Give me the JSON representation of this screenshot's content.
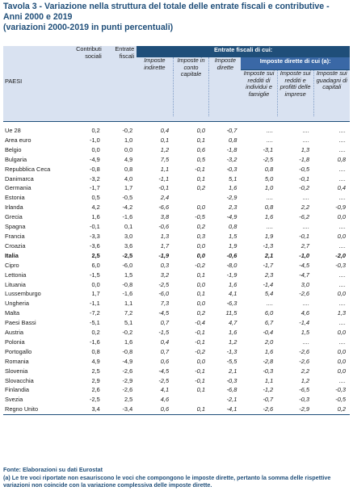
{
  "title": {
    "main": "Tavola 3 - Variazione nella struttura del totale delle entrate fiscali e contributive - Anni 2000 e 2019",
    "sub": "(variazioni 2000-2019 in punti percentuali)"
  },
  "header": {
    "paesi": "PAESI",
    "contributi": "Contributi sociali",
    "entrate_fiscali": "Entrate fiscali",
    "entrate_di_cui": "Entrate fiscali di cui:",
    "imposte_indirette": "Imposte indirette",
    "imposte_conto_capitale": "Imposte in conto capitale",
    "imposte_dirette": "Imposte dirette",
    "imposte_dirette_di_cui": "Imposte dirette di cui (a):",
    "redditi_individui": "Imposte sui redditi di individui e famiglie",
    "redditi_imprese": "Imposte sui redditi e profitti delle imprese",
    "guadagni_capitale": "Imposte sui guadagni di capitali"
  },
  "rows": [
    {
      "paese": "Ue 28",
      "v": [
        "0,2",
        "-0,2",
        "0,4",
        "0,0",
        "-0,7",
        "....",
        "....",
        "...."
      ]
    },
    {
      "paese": "Area euro",
      "v": [
        "-1,0",
        "1,0",
        "0,1",
        "0,1",
        "0,8",
        "....",
        "....",
        "...."
      ]
    },
    {
      "paese": "Belgio",
      "v": [
        "0,0",
        "0,0",
        "1,2",
        "0,6",
        "-1,8",
        "-3,1",
        "1,3",
        "...."
      ]
    },
    {
      "paese": "Bulgaria",
      "v": [
        "-4,9",
        "4,9",
        "7,5",
        "0,5",
        "-3,2",
        "-2,5",
        "-1,8",
        "0,8"
      ]
    },
    {
      "paese": "Repubblica Ceca",
      "v": [
        "-0,8",
        "0,8",
        "1,1",
        "-0,1",
        "-0,3",
        "0,8",
        "-0,5",
        "...."
      ]
    },
    {
      "paese": "Danimarca",
      "v": [
        "-3,2",
        "4,0",
        "-1,1",
        "0,1",
        "5,1",
        "5,0",
        "-0,1",
        "...."
      ]
    },
    {
      "paese": "Germania",
      "v": [
        "-1,7",
        "1,7",
        "-0,1",
        "0,2",
        "1,6",
        "1,0",
        "-0,2",
        "0,4"
      ]
    },
    {
      "paese": "Estonia",
      "v": [
        "0,5",
        "-0,5",
        "2,4",
        "",
        "-2,9",
        "....",
        "....",
        "...."
      ]
    },
    {
      "paese": "Irlanda",
      "v": [
        "4,2",
        "-4,2",
        "-6,6",
        "0,0",
        "2,3",
        "0,8",
        "2,2",
        "-0,9"
      ]
    },
    {
      "paese": "Grecia",
      "v": [
        "1,6",
        "-1,6",
        "3,8",
        "-0,5",
        "-4,9",
        "1,6",
        "-6,2",
        "0,0"
      ]
    },
    {
      "paese": "Spagna",
      "v": [
        "-0,1",
        "0,1",
        "-0,6",
        "0,2",
        "0,8",
        "....",
        "....",
        "...."
      ]
    },
    {
      "paese": "Francia",
      "v": [
        "-3,3",
        "3,0",
        "1,3",
        "0,3",
        "1,5",
        "1,9",
        "-0,1",
        "0,0"
      ]
    },
    {
      "paese": "Croazia",
      "v": [
        "-3,6",
        "3,6",
        "1,7",
        "0,0",
        "1,9",
        "-1,3",
        "2,7",
        "...."
      ]
    },
    {
      "paese": "Italia",
      "v": [
        "2,5",
        "-2,5",
        "-1,9",
        "0,0",
        "-0,6",
        "2,1",
        "-1,0",
        "-2,0"
      ],
      "bold": true
    },
    {
      "paese": "Cipro",
      "v": [
        "6,0",
        "-6,0",
        "0,3",
        "-0,2",
        "-8,0",
        "-1,7",
        "-4,5",
        "-0,3"
      ]
    },
    {
      "paese": "Lettonia",
      "v": [
        "-1,5",
        "1,5",
        "3,2",
        "0,1",
        "-1,9",
        "2,3",
        "-4,7",
        "...."
      ]
    },
    {
      "paese": "Lituania",
      "v": [
        "0,0",
        "-0,8",
        "-2,5",
        "0,0",
        "1,6",
        "-1,4",
        "3,0",
        "...."
      ]
    },
    {
      "paese": "Lussemburgo",
      "v": [
        "1,7",
        "-1,6",
        "-6,0",
        "0,1",
        "4,1",
        "5,4",
        "-2,6",
        "0,0"
      ]
    },
    {
      "paese": "Ungheria",
      "v": [
        "-1,1",
        "1,1",
        "7,3",
        "0,0",
        "-6,3",
        "....",
        "....",
        "...."
      ]
    },
    {
      "paese": "Malta",
      "v": [
        "-7,2",
        "7,2",
        "-4,5",
        "0,2",
        "11,5",
        "6,0",
        "4,6",
        "1,3"
      ]
    },
    {
      "paese": "Paesi Bassi",
      "v": [
        "-5,1",
        "5,1",
        "0,7",
        "-0,4",
        "4,7",
        "6,7",
        "-1,4",
        "...."
      ]
    },
    {
      "paese": "Austria",
      "v": [
        "0,2",
        "-0,2",
        "-1,5",
        "-0,1",
        "1,6",
        "-0,4",
        "1,5",
        "0,0"
      ]
    },
    {
      "paese": "Polonia",
      "v": [
        "-1,6",
        "1,6",
        "0,4",
        "-0,1",
        "1,2",
        "2,0",
        "....",
        "...."
      ]
    },
    {
      "paese": "Portogallo",
      "v": [
        "0,8",
        "-0,8",
        "0,7",
        "-0,2",
        "-1,3",
        "1,6",
        "-2,6",
        "0,0"
      ]
    },
    {
      "paese": "Romania",
      "v": [
        "4,9",
        "-4,9",
        "0,6",
        "0,0",
        "-5,5",
        "-2,8",
        "-2,6",
        "0,0"
      ]
    },
    {
      "paese": "Slovenia",
      "v": [
        "2,5",
        "-2,6",
        "-4,5",
        "-0,1",
        "2,1",
        "-0,3",
        "2,2",
        "0,0"
      ]
    },
    {
      "paese": "Slovacchia",
      "v": [
        "2,9",
        "-2,9",
        "-2,5",
        "-0,1",
        "-0,3",
        "1,1",
        "1,2",
        "...."
      ]
    },
    {
      "paese": "Finlandia",
      "v": [
        "2,6",
        "-2,6",
        "4,1",
        "0,1",
        "-6,8",
        "-1,2",
        "-6,5",
        "-0,3"
      ]
    },
    {
      "paese": "Svezia",
      "v": [
        "-2,5",
        "2,5",
        "4,6",
        "",
        "-2,1",
        "-0,7",
        "-0,3",
        "-0,5"
      ]
    },
    {
      "paese": "Regno Unito",
      "v": [
        "3,4",
        "-3,4",
        "0,6",
        "0,1",
        "-4,1",
        "-2,6",
        "-2,9",
        "0,2"
      ]
    }
  ],
  "footer": {
    "fonte": "Fonte: Elaborazioni su dati Eurostat",
    "nota": "(a) Le tre voci riportate non esauriscono le voci che compongono le imposte dirette, pertanto la somma delle rispettive variazioni non coincide con la variazione complessiva delle imposte dirette."
  }
}
